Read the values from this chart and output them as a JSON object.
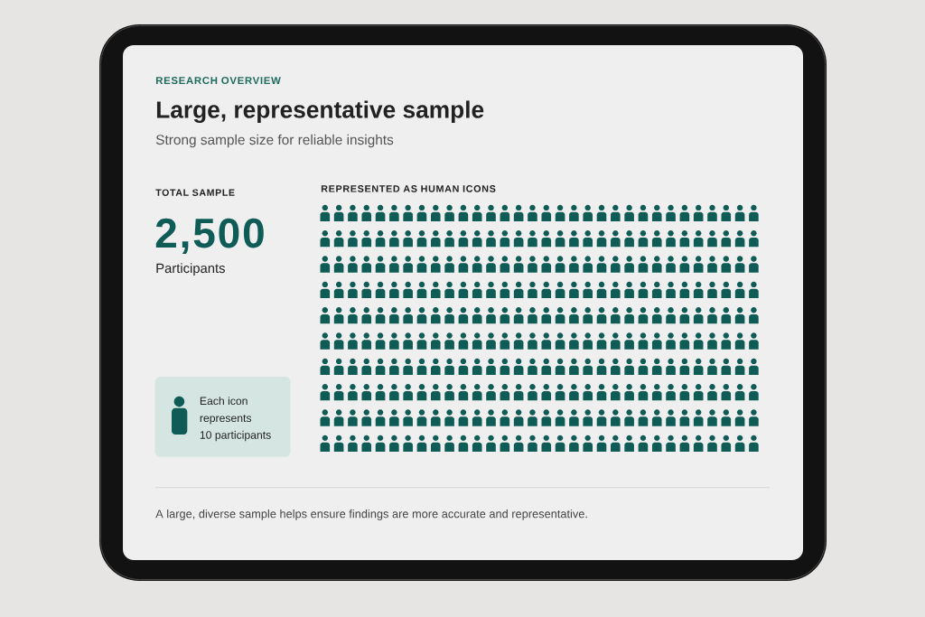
{
  "chart_data": {
    "type": "other",
    "title": "Large, representative sample",
    "subtitle": "Strong sample size for reliable insights",
    "values": [
      2500
    ],
    "value_labels": [
      "2,500"
    ],
    "annotations": [
      "RESEARCH OVERVIEW",
      "TOTAL SAMPLE",
      "Participants",
      "REPRESENTED AS HUMAN ICONS",
      "Each icon",
      "represents",
      "10 participants",
      "A large, diverse sample helps ensure findings are more accurate and representative."
    ]
  }
}
